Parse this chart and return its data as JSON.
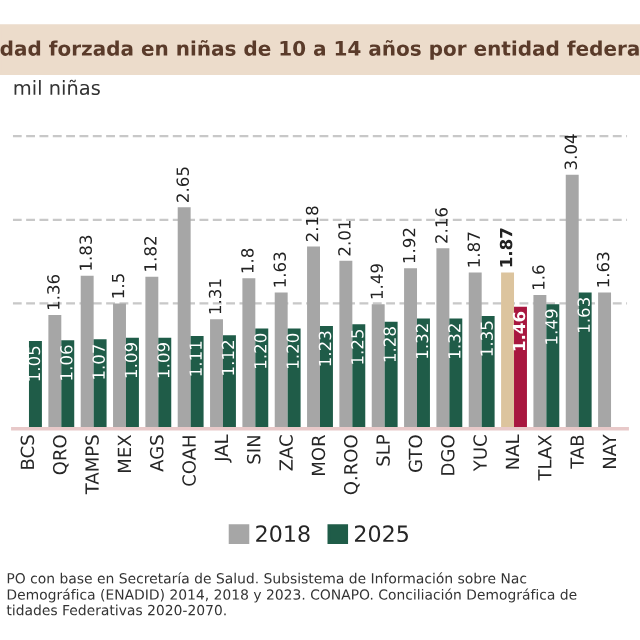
{
  "chart_data": {
    "type": "bar",
    "title": "dad forzada en niñas de 10 a 14 años por entidad federa",
    "ylabel": "mil niñas",
    "categories": [
      "BCS",
      "QRO",
      "TAMPS",
      "MEX",
      "AGS",
      "COAH",
      "JAL",
      "SIN",
      "ZAC",
      "MOR",
      "Q.ROO",
      "SLP",
      "GTO",
      "DGO",
      "YUC",
      "NAL",
      "TLAX",
      "TAB",
      "NAY"
    ],
    "series": [
      {
        "name": "2018",
        "color": "#a6a6a6",
        "colors": [
          "#a6a6a6",
          "#a6a6a6",
          "#a6a6a6",
          "#a6a6a6",
          "#a6a6a6",
          "#a6a6a6",
          "#a6a6a6",
          "#a6a6a6",
          "#a6a6a6",
          "#a6a6a6",
          "#a6a6a6",
          "#a6a6a6",
          "#a6a6a6",
          "#a6a6a6",
          "#a6a6a6",
          "#dcc49e",
          "#a6a6a6",
          "#a6a6a6",
          "#a6a6a6"
        ],
        "values": [
          null,
          1.36,
          1.83,
          1.5,
          1.82,
          2.65,
          1.31,
          1.8,
          1.63,
          2.18,
          2.01,
          1.49,
          1.92,
          2.16,
          1.87,
          1.87,
          1.6,
          3.04,
          1.63
        ]
      },
      {
        "name": "2025",
        "color": "#1f5c48",
        "colors": [
          "#1f5c48",
          "#1f5c48",
          "#1f5c48",
          "#1f5c48",
          "#1f5c48",
          "#1f5c48",
          "#1f5c48",
          "#1f5c48",
          "#1f5c48",
          "#1f5c48",
          "#1f5c48",
          "#1f5c48",
          "#1f5c48",
          "#1f5c48",
          "#1f5c48",
          "#a8173f",
          "#1f5c48",
          "#1f5c48",
          "#1f5c48"
        ],
        "values": [
          1.05,
          1.06,
          1.07,
          1.09,
          1.09,
          1.11,
          1.12,
          1.2,
          1.2,
          1.23,
          1.25,
          1.28,
          1.32,
          1.32,
          1.35,
          1.46,
          1.49,
          1.63,
          null
        ],
        "value_labels": [
          "1.05",
          "1.06",
          "1.07",
          "1.09",
          "1.09",
          "1.11",
          "1.12",
          "1.20",
          "1.20",
          "1.23",
          "1.25",
          "1.28",
          "1.32",
          "1.32",
          "1.35",
          "1.46",
          "1.49",
          "1.63",
          null
        ]
      }
    ],
    "data_labels": true,
    "ref_lines": [
      {
        "axis": "y",
        "value": 1.5,
        "color": "#c8c8c8",
        "line_style": "dashed"
      },
      {
        "axis": "y",
        "value": 2.5,
        "color": "#c8c8c8",
        "line_style": "dashed"
      },
      {
        "axis": "y",
        "value": 3.5,
        "color": "#c8c8c8",
        "line_style": "dashed"
      }
    ],
    "tick_labels": "x",
    "legend": "bottom",
    "annotations": [
      "PO con base en Secretaría de Salud. Subsistema de Información sobre Nac\nDemográfica (ENADID) 2014, 2018 y 2023. CONAPO. Conciliación Demográfica de\ntidades Federativas 2020-2070."
    ]
  }
}
